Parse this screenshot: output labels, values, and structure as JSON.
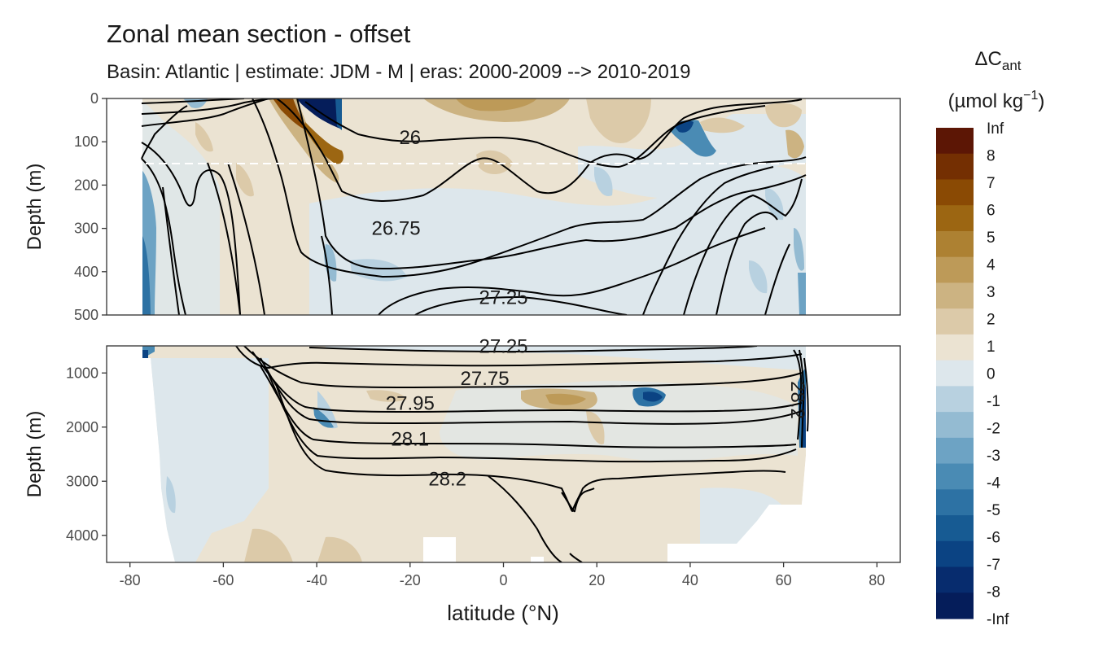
{
  "title": "Zonal mean section - offset",
  "subtitle": "Basin: Atlantic | estimate: JDM - M | eras: 2000-2009 --> 2010-2019",
  "chart_data": {
    "type": "heatmap",
    "xlabel": "latitude (°N)",
    "ylabel": "Depth (m)",
    "x_ticks": [
      -80,
      -60,
      -40,
      -20,
      0,
      20,
      40,
      60,
      80
    ],
    "xlim": [
      -85,
      85
    ],
    "panels": [
      {
        "name": "upper",
        "ylim": [
          500,
          0
        ],
        "y_ticks": [
          0,
          100,
          200,
          300,
          400,
          500
        ],
        "reference_depth": 150,
        "contour_labels": [
          {
            "text": "26",
            "lat": -20,
            "depth": 90
          },
          {
            "text": "26.75",
            "lat": -23,
            "depth": 300
          },
          {
            "text": "27.25",
            "lat": 0,
            "depth": 460
          }
        ]
      },
      {
        "name": "lower",
        "ylim": [
          4500,
          500
        ],
        "y_ticks": [
          1000,
          2000,
          3000,
          4000
        ],
        "contour_labels": [
          {
            "text": "27.25",
            "lat": 0,
            "depth": 510
          },
          {
            "text": "27.75",
            "lat": -4,
            "depth": 1100
          },
          {
            "text": "27.95",
            "lat": -20,
            "depth": 1560
          },
          {
            "text": "28.1",
            "lat": -20,
            "depth": 2220
          },
          {
            "text": "28.2",
            "lat": -12,
            "depth": 2960
          },
          {
            "text": "28.2",
            "lat": 63,
            "depth": 1500
          }
        ]
      }
    ],
    "legend": {
      "title": "ΔC",
      "title_sub": "ant",
      "unit": "(µmol kg",
      "unit_sup": "−1",
      "unit_close": ")",
      "labels": [
        "Inf",
        "8",
        "7",
        "6",
        "5",
        "4",
        "3",
        "2",
        "1",
        "0",
        "-1",
        "-2",
        "-3",
        "-4",
        "-5",
        "-6",
        "-7",
        "-8",
        "-Inf"
      ],
      "colors": [
        "#5c1605",
        "#742f02",
        "#8a4a04",
        "#9c6612",
        "#ad8132",
        "#bd9a58",
        "#ccb382",
        "#dccaa9",
        "#ebe3d2",
        "#dde7ec",
        "#b8d1e0",
        "#94bbd2",
        "#6da3c4",
        "#4a8bb4",
        "#2d72a4",
        "#175b93",
        "#0b4383",
        "#072c6e",
        "#051d5a"
      ]
    }
  }
}
